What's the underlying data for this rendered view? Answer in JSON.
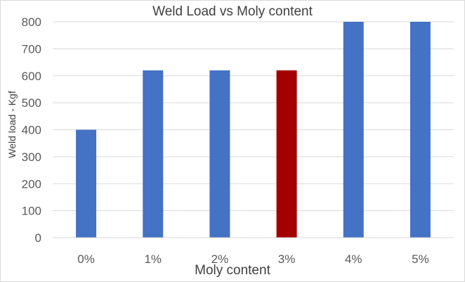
{
  "chart_data": {
    "type": "bar",
    "title": "Weld Load vs Moly content",
    "xlabel": "Moly content",
    "ylabel": "Weld load - Kgf",
    "categories": [
      "0%",
      "1%",
      "2%",
      "3%",
      "4%",
      "5%"
    ],
    "values": [
      400,
      620,
      620,
      620,
      800,
      800
    ],
    "ylim": [
      0,
      800
    ],
    "yticks": [
      0,
      100,
      200,
      300,
      400,
      500,
      600,
      700,
      800
    ],
    "grid": true,
    "legend": "none",
    "colors": {
      "bar": "#4472c4",
      "highlight": "#a50000",
      "gridline": "#d9d9d9"
    },
    "highlight_index": 3
  }
}
